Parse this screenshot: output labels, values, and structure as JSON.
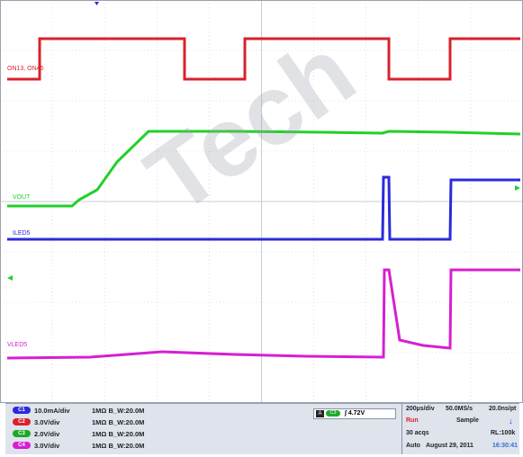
{
  "screen": {
    "bg": "#ffffff",
    "grid_color": "#c8ccd4",
    "frame_color": "#9aa0ad"
  },
  "trace_labels": {
    "ch1_top": "ON13, ON45",
    "vout": "VOUT",
    "iled5": "ILED5",
    "vled5": "VLED5"
  },
  "colors": {
    "ch1": "#2b2bd9",
    "ch2": "#d9212b",
    "ch3": "#1da92a",
    "ch4": "#d61fd2"
  },
  "channels": [
    {
      "badge": "C1",
      "scale": "10.0mA/div",
      "impedance": "1MΩ B_W:20.0M",
      "color": "#2b2bd9"
    },
    {
      "badge": "C2",
      "scale": "3.0V/div",
      "impedance": "1MΩ B_W:20.0M",
      "color": "#d9212b"
    },
    {
      "badge": "C3",
      "scale": "2.0V/div",
      "impedance": "1MΩ B_W:20.0M",
      "color": "#1da92a"
    },
    {
      "badge": "C4",
      "scale": "3.0V/div",
      "impedance": "1MΩ B_W:20.0M",
      "color": "#d61fd2"
    }
  ],
  "trigger": {
    "letter": "A",
    "channel": "C3",
    "level": "∫ 4.72V"
  },
  "acquisition": {
    "timebase": "200µs/div",
    "sample_rate": "50.0MS/s",
    "resolution": "20.0ns/pt",
    "run_state": "Run",
    "mode": "Sample",
    "acqs": "30 acqs",
    "record_length": "RL:100k",
    "trigger_mode": "Auto",
    "date": "August 29, 2011",
    "time": "16:30:41"
  }
}
